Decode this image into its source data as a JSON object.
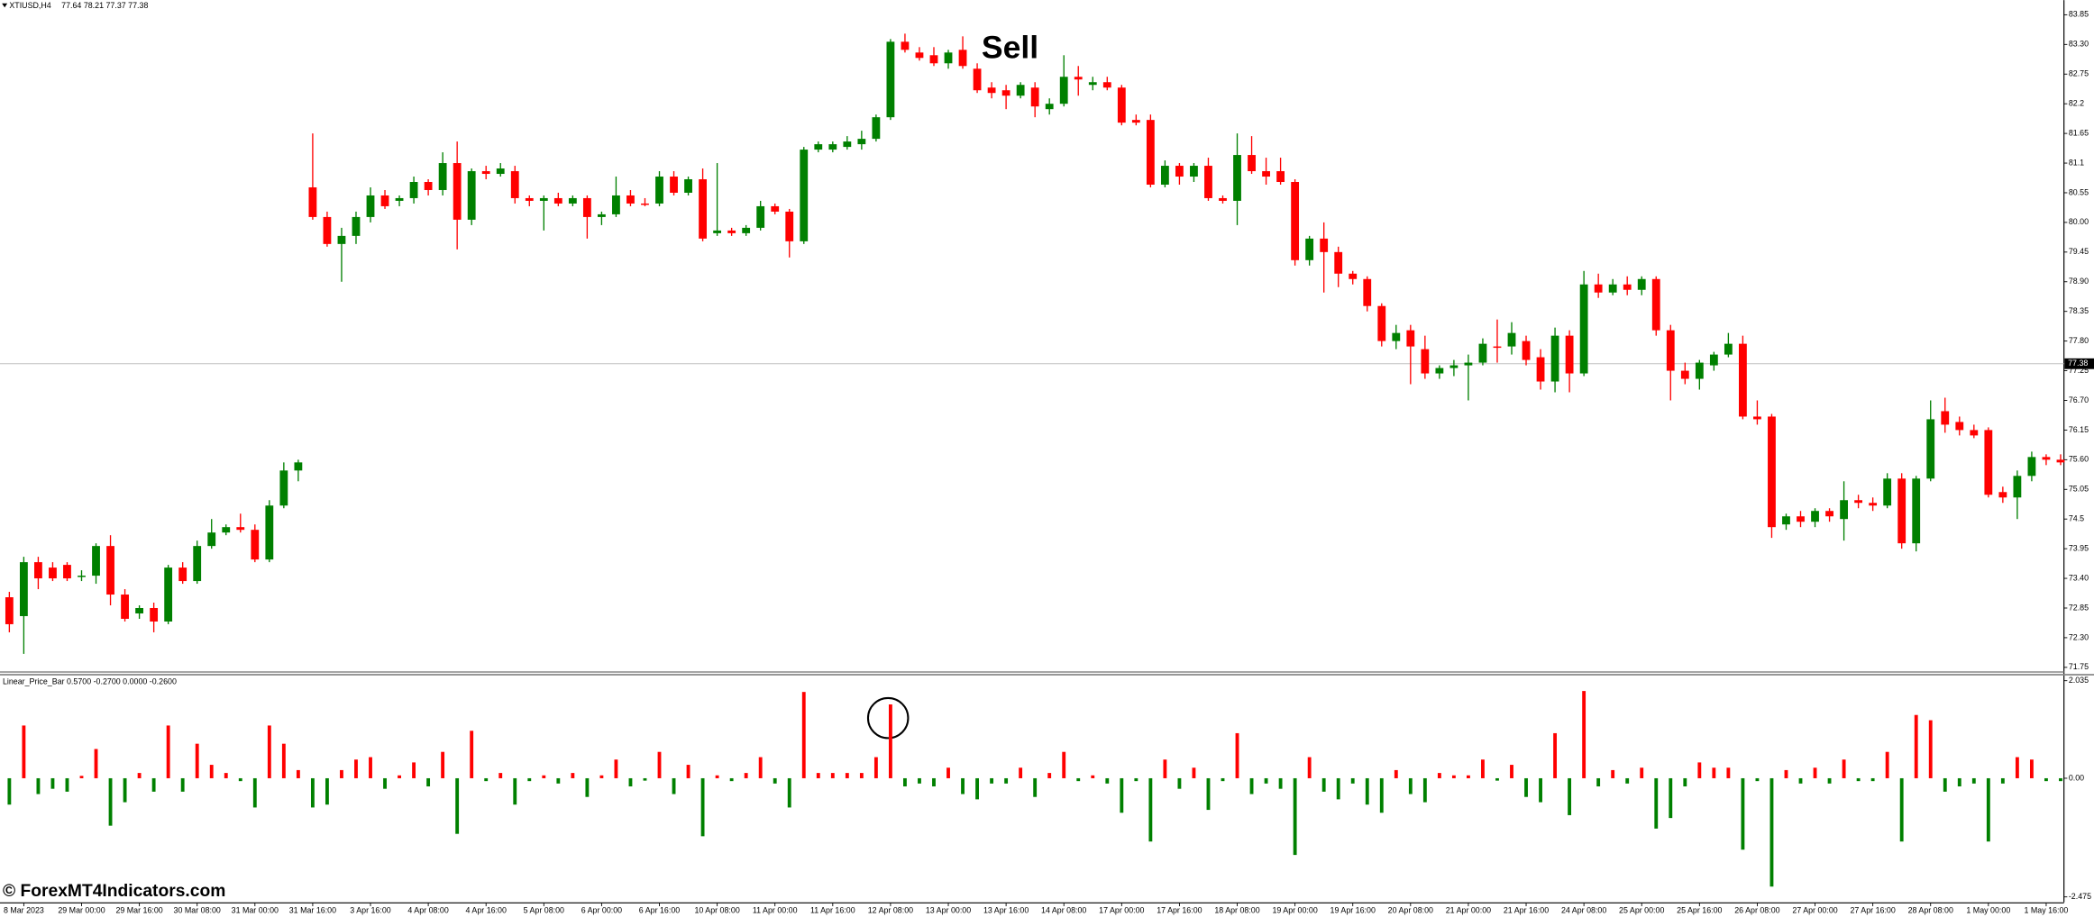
{
  "header": {
    "symbol": "XTIUSD,H4",
    "values": "77.64 78.21 77.37 77.38"
  },
  "watermark": "© ForexMT4Indicators.com",
  "chart_data": [
    {
      "type": "candlestick",
      "annotation": "Sell",
      "current_price": 77.38,
      "up_color": "#008000",
      "down_color": "#ff0000",
      "ylim": [
        71.75,
        83.85
      ],
      "yticks": [
        71.75,
        {
          "value": 72.3,
          "label": "72.30"
        },
        72.85,
        {
          "value": 73.4,
          "label": "73.40"
        },
        73.95,
        74.5,
        75.05,
        {
          "value": 75.6,
          "label": "75.60"
        },
        76.15,
        {
          "value": 76.7,
          "label": "76.70"
        },
        77.25,
        {
          "value": 77.8,
          "label": "77.80"
        },
        78.35,
        {
          "value": 78.9,
          "label": "78.90"
        },
        79.45,
        {
          "value": 80.0,
          "label": "80.00"
        },
        80.55,
        81.1,
        81.65,
        82.2,
        82.75,
        {
          "value": 83.3,
          "label": "83.30"
        },
        83.85
      ],
      "categories": [
        null,
        "8 Mar 2023",
        null,
        null,
        null,
        "29 Mar 00:00",
        null,
        null,
        null,
        "29 Mar 16:00",
        null,
        null,
        null,
        "30 Mar 08:00",
        null,
        null,
        null,
        "31 Mar 00:00",
        null,
        null,
        null,
        "31 Mar 16:00",
        null,
        null,
        null,
        "3 Apr 16:00",
        null,
        null,
        null,
        "4 Apr 08:00",
        null,
        null,
        null,
        "4 Apr 16:00",
        null,
        null,
        null,
        "5 Apr 08:00",
        null,
        null,
        null,
        "6 Apr 00:00",
        null,
        null,
        null,
        "6 Apr 16:00",
        null,
        null,
        null,
        "10 Apr 08:00",
        null,
        null,
        null,
        "11 Apr 00:00",
        null,
        null,
        null,
        "11 Apr 16:00",
        null,
        null,
        null,
        "12 Apr 08:00",
        null,
        null,
        null,
        "13 Apr 00:00",
        null,
        null,
        null,
        "13 Apr 16:00",
        null,
        null,
        null,
        "14 Apr 08:00",
        null,
        null,
        null,
        "17 Apr 00:00",
        null,
        null,
        null,
        "17 Apr 16:00",
        null,
        null,
        null,
        "18 Apr 08:00",
        null,
        null,
        null,
        "19 Apr 00:00",
        null,
        null,
        null,
        "19 Apr 16:00",
        null,
        null,
        null,
        "20 Apr 08:00",
        null,
        null,
        null,
        "21 Apr 00:00",
        null,
        null,
        null,
        "21 Apr 16:00",
        null,
        null,
        null,
        "24 Apr 08:00",
        null,
        null,
        null,
        "25 Apr 00:00",
        null,
        null,
        null,
        "25 Apr 16:00",
        null,
        null,
        null,
        "26 Apr 08:00",
        null,
        null,
        null,
        "27 Apr 00:00",
        null,
        null,
        null,
        "27 Apr 16:00",
        null,
        null,
        null,
        "28 Apr 08:00",
        null,
        null,
        null,
        "1 May 00:00",
        null,
        null,
        null,
        "1 May 16:00",
        null
      ],
      "open": [
        73.05,
        72.7,
        73.7,
        73.6,
        73.65,
        73.45,
        73.45,
        74.0,
        73.1,
        72.75,
        72.85,
        72.6,
        73.6,
        73.35,
        74.0,
        74.25,
        74.35,
        74.3,
        73.75,
        74.75,
        75.4,
        80.65,
        80.1,
        79.6,
        79.75,
        80.1,
        80.5,
        80.4,
        80.45,
        80.75,
        80.6,
        81.1,
        80.05,
        80.95,
        80.9,
        80.95,
        80.45,
        80.4,
        80.45,
        80.35,
        80.45,
        80.1,
        80.15,
        80.5,
        80.35,
        80.35,
        80.85,
        80.55,
        80.8,
        79.8,
        79.85,
        79.8,
        79.9,
        80.3,
        80.2,
        79.65,
        81.35,
        81.35,
        81.4,
        81.45,
        81.55,
        81.95,
        83.35,
        83.15,
        83.1,
        82.95,
        83.2,
        82.85,
        82.5,
        82.45,
        82.35,
        82.5,
        82.1,
        82.2,
        82.7,
        82.55,
        82.6,
        82.5,
        81.9,
        81.9,
        80.7,
        81.05,
        80.85,
        81.05,
        80.45,
        80.4,
        81.25,
        80.95,
        80.95,
        80.75,
        79.3,
        79.7,
        79.45,
        79.05,
        78.95,
        78.45,
        77.8,
        78.0,
        77.65,
        77.2,
        77.3,
        77.35,
        77.4,
        77.7,
        77.7,
        77.8,
        77.5,
        77.05,
        77.9,
        77.2,
        78.85,
        78.7,
        78.85,
        78.75,
        78.95,
        78.0,
        77.25,
        77.1,
        77.35,
        77.55,
        77.75,
        76.4,
        76.4,
        74.4,
        74.55,
        74.45,
        74.65,
        74.5,
        74.85,
        74.8,
        74.75,
        75.25,
        74.05,
        75.25,
        76.5,
        76.3,
        76.15,
        76.15,
        75.0,
        74.9,
        75.3,
        75.65,
        75.6
      ],
      "high": [
        73.15,
        73.8,
        73.8,
        73.7,
        73.7,
        73.55,
        74.05,
        74.2,
        73.2,
        72.9,
        72.95,
        73.65,
        73.7,
        74.1,
        74.5,
        74.4,
        74.6,
        74.4,
        74.85,
        75.55,
        75.6,
        81.65,
        80.2,
        79.9,
        80.2,
        80.65,
        80.6,
        80.5,
        80.85,
        80.8,
        81.3,
        81.5,
        81.0,
        81.05,
        81.1,
        81.05,
        80.5,
        80.5,
        80.55,
        80.5,
        80.5,
        80.2,
        80.85,
        80.6,
        80.45,
        80.95,
        80.95,
        80.85,
        81.0,
        81.1,
        79.9,
        79.95,
        80.4,
        80.35,
        80.25,
        81.4,
        81.5,
        81.5,
        81.6,
        81.7,
        82.0,
        83.4,
        83.5,
        83.25,
        83.25,
        83.2,
        83.45,
        82.95,
        82.6,
        82.55,
        82.6,
        82.6,
        82.3,
        83.1,
        82.9,
        82.7,
        82.7,
        82.55,
        82.0,
        82.0,
        81.15,
        81.1,
        81.1,
        81.2,
        80.5,
        81.65,
        81.6,
        81.2,
        81.2,
        80.8,
        79.75,
        80.0,
        79.55,
        79.1,
        79.0,
        78.5,
        78.1,
        78.1,
        77.9,
        77.35,
        77.45,
        77.55,
        77.85,
        78.2,
        78.15,
        77.9,
        77.65,
        78.05,
        78.0,
        79.1,
        79.05,
        78.95,
        79.0,
        79.0,
        79.0,
        78.1,
        77.4,
        77.45,
        77.6,
        77.95,
        77.9,
        76.7,
        76.45,
        74.6,
        74.65,
        74.7,
        74.7,
        75.2,
        74.95,
        74.9,
        75.35,
        75.35,
        75.3,
        76.7,
        76.75,
        76.4,
        76.25,
        76.2,
        75.1,
        75.4,
        75.75,
        75.7,
        75.7
      ],
      "low": [
        72.4,
        72.0,
        73.2,
        73.35,
        73.35,
        73.35,
        73.3,
        72.9,
        72.6,
        72.65,
        72.4,
        72.55,
        73.3,
        73.3,
        73.95,
        74.2,
        74.25,
        73.7,
        73.7,
        74.7,
        75.2,
        80.05,
        79.55,
        78.9,
        79.6,
        80.0,
        80.25,
        80.3,
        80.35,
        80.5,
        80.5,
        79.5,
        79.95,
        80.8,
        80.85,
        80.35,
        80.3,
        79.85,
        80.3,
        80.3,
        79.7,
        79.95,
        80.1,
        80.3,
        80.3,
        80.3,
        80.5,
        80.5,
        79.65,
        79.75,
        79.75,
        79.75,
        79.85,
        80.15,
        79.35,
        79.6,
        81.3,
        81.3,
        81.35,
        81.35,
        81.5,
        81.9,
        83.15,
        83.0,
        82.9,
        82.85,
        82.85,
        82.4,
        82.3,
        82.1,
        82.3,
        81.95,
        82.0,
        82.15,
        82.35,
        82.45,
        82.45,
        81.8,
        81.8,
        80.65,
        80.65,
        80.7,
        80.75,
        80.4,
        80.35,
        79.95,
        80.9,
        80.7,
        80.7,
        79.2,
        79.2,
        78.7,
        78.8,
        78.85,
        78.35,
        77.7,
        77.65,
        77.0,
        77.1,
        77.1,
        77.15,
        76.7,
        77.35,
        77.4,
        77.55,
        77.35,
        76.9,
        76.85,
        76.85,
        77.15,
        78.6,
        78.65,
        78.65,
        78.65,
        77.9,
        76.7,
        77.0,
        76.9,
        77.25,
        77.5,
        76.35,
        76.25,
        74.15,
        74.3,
        74.35,
        74.35,
        74.45,
        74.1,
        74.7,
        74.65,
        74.7,
        73.95,
        73.9,
        75.2,
        76.1,
        76.05,
        76.0,
        74.9,
        74.8,
        74.5,
        75.2,
        75.5,
        75.5
      ],
      "close": [
        72.55,
        73.7,
        73.4,
        73.4,
        73.4,
        73.45,
        74.0,
        73.1,
        72.65,
        72.85,
        72.6,
        73.6,
        73.35,
        74.0,
        74.25,
        74.35,
        74.3,
        73.75,
        74.75,
        75.4,
        75.55,
        80.1,
        79.6,
        79.75,
        80.1,
        80.5,
        80.3,
        80.45,
        80.75,
        80.6,
        81.1,
        80.05,
        80.95,
        80.9,
        81.0,
        80.45,
        80.4,
        80.45,
        80.35,
        80.45,
        80.1,
        80.15,
        80.5,
        80.35,
        80.33,
        80.85,
        80.55,
        80.8,
        79.7,
        79.85,
        79.8,
        79.9,
        80.3,
        80.2,
        79.65,
        81.35,
        81.45,
        81.45,
        81.5,
        81.55,
        81.95,
        83.35,
        83.2,
        83.05,
        82.95,
        83.15,
        82.9,
        82.45,
        82.4,
        82.35,
        82.55,
        82.15,
        82.2,
        82.7,
        82.65,
        82.6,
        82.5,
        81.85,
        81.85,
        80.7,
        81.05,
        80.85,
        81.05,
        80.45,
        80.4,
        81.25,
        80.95,
        80.85,
        80.75,
        79.3,
        79.7,
        79.45,
        79.05,
        78.95,
        78.45,
        77.8,
        77.95,
        77.7,
        77.2,
        77.3,
        77.35,
        77.4,
        77.75,
        77.68,
        77.95,
        77.45,
        77.05,
        77.9,
        77.2,
        78.85,
        78.7,
        78.85,
        78.75,
        78.95,
        78.0,
        77.25,
        77.1,
        77.4,
        77.55,
        77.75,
        76.4,
        76.35,
        74.35,
        74.55,
        74.45,
        74.65,
        74.55,
        74.85,
        74.8,
        74.75,
        75.25,
        74.05,
        75.25,
        76.35,
        76.25,
        76.15,
        76.05,
        74.95,
        74.9,
        75.3,
        75.65,
        75.6,
        75.55
      ]
    },
    {
      "type": "bar",
      "title": "Linear_Price_Bar 0.5700 -0.2700 0.0000 -0.2600",
      "positive_color": "#ff0000",
      "negative_color": "#008000",
      "ylim": [
        -2.475,
        2.035
      ],
      "yticks": [
        -2.475,
        {
          "value": 0,
          "label": "0.00"
        },
        2.035
      ],
      "values": [
        -0.55,
        1.1,
        -0.33,
        -0.22,
        -0.28,
        0.05,
        0.61,
        -0.99,
        -0.5,
        0.11,
        -0.28,
        1.1,
        -0.28,
        0.72,
        0.28,
        0.11,
        -0.06,
        -0.61,
        1.1,
        0.72,
        0.17,
        -0.61,
        -0.55,
        0.17,
        0.39,
        0.44,
        -0.22,
        0.06,
        0.33,
        -0.17,
        0.55,
        -1.16,
        0.99,
        -0.06,
        0.11,
        -0.55,
        -0.06,
        0.06,
        -0.11,
        0.11,
        -0.39,
        0.06,
        0.39,
        -0.17,
        -0.05,
        0.55,
        -0.33,
        0.28,
        -1.21,
        0.06,
        -0.06,
        0.11,
        0.44,
        -0.11,
        -0.61,
        1.8,
        0.11,
        0.11,
        0.11,
        0.11,
        0.44,
        1.54,
        -0.17,
        -0.11,
        -0.17,
        0.22,
        -0.33,
        -0.44,
        -0.11,
        -0.11,
        0.22,
        -0.39,
        0.11,
        0.55,
        -0.06,
        0.06,
        -0.11,
        -0.72,
        -0.06,
        -1.32,
        0.39,
        -0.22,
        0.22,
        -0.66,
        -0.06,
        0.94,
        -0.33,
        -0.11,
        -0.22,
        -1.6,
        0.44,
        -0.28,
        -0.44,
        -0.11,
        -0.55,
        -0.72,
        0.17,
        -0.33,
        -0.5,
        0.11,
        0.06,
        0.06,
        0.39,
        -0.05,
        0.28,
        -0.39,
        -0.5,
        0.94,
        -0.77,
        1.82,
        -0.17,
        0.17,
        -0.11,
        0.22,
        -1.05,
        -0.83,
        -0.17,
        0.33,
        0.22,
        0.22,
        -1.49,
        -0.06,
        -2.26,
        0.17,
        -0.11,
        0.22,
        -0.11,
        0.39,
        -0.06,
        -0.06,
        0.55,
        -1.32,
        1.32,
        1.21,
        -0.28,
        -0.17,
        -0.11,
        -1.32,
        -0.11,
        0.44,
        0.39,
        -0.06,
        -0.06
      ]
    }
  ]
}
